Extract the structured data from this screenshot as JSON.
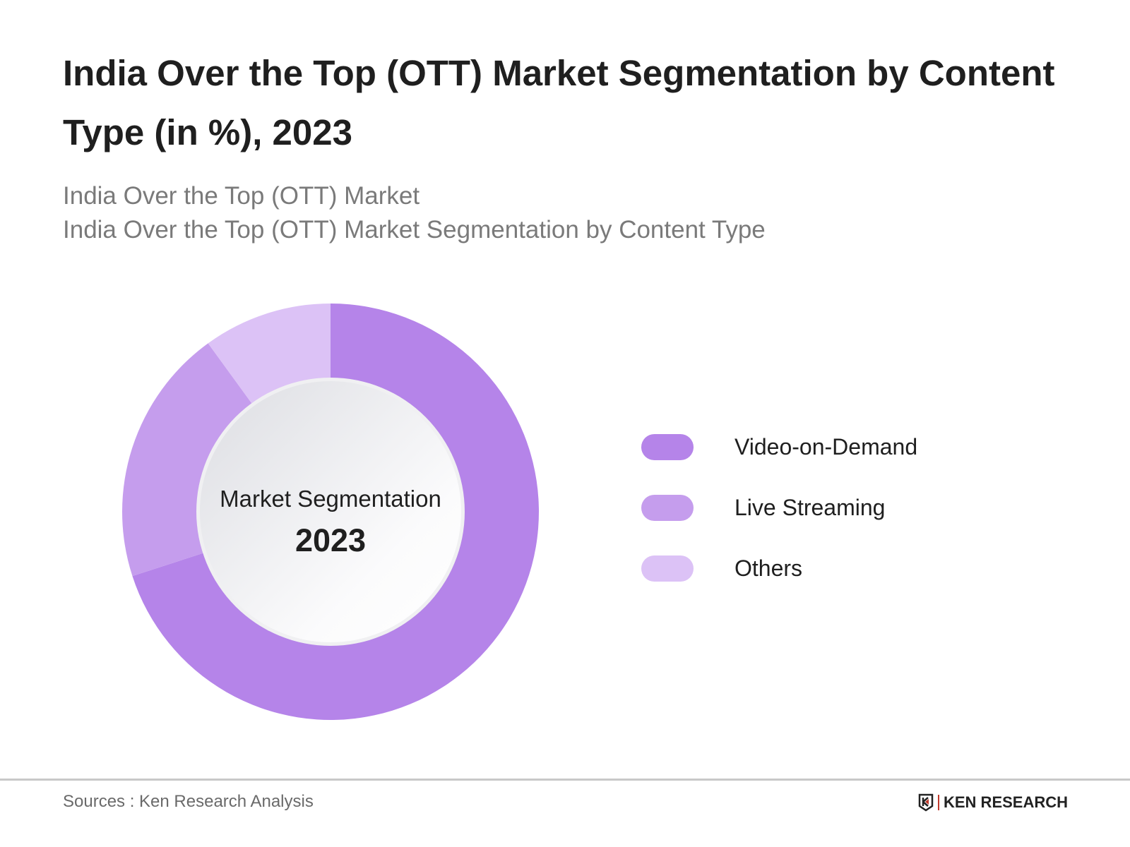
{
  "title": "India Over the Top (OTT) Market Segmentation by Content Type (in %), 2023",
  "subtitle_lines": [
    "India Over the Top (OTT) Market",
    "India Over the Top (OTT) Market Segmentation by Content Type"
  ],
  "chart_data": {
    "type": "pie",
    "variant": "donut",
    "center_label": "Market Segmentation",
    "center_value": "2023",
    "categories": [
      "Video-on-Demand",
      "Live Streaming",
      "Others"
    ],
    "values": [
      70,
      20,
      10
    ],
    "colors": [
      "#b584e9",
      "#c59ded",
      "#dcc2f6"
    ],
    "legend_position": "right"
  },
  "footer": {
    "source": "Sources : Ken Research Analysis",
    "logo_text": "KEN RESEARCH"
  }
}
